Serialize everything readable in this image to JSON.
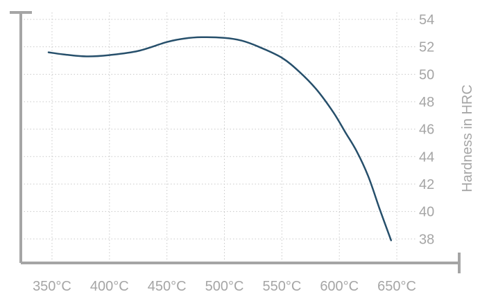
{
  "chart_data": {
    "type": "line",
    "title": "",
    "xlabel": "",
    "ylabel": "Hardness in HRC",
    "xlim": [
      330,
      670
    ],
    "ylim": [
      36.5,
      55
    ],
    "grid": true,
    "x_ticks": [
      350,
      400,
      450,
      500,
      550,
      600,
      650
    ],
    "x_tick_labels": [
      "350°C",
      "400°C",
      "450°C",
      "500°C",
      "550°C",
      "600°C",
      "650°C"
    ],
    "y_ticks": [
      38,
      40,
      42,
      44,
      46,
      48,
      50,
      52,
      54
    ],
    "y_tick_labels": [
      "38",
      "40",
      "42",
      "44",
      "46",
      "48",
      "50",
      "52",
      "54"
    ],
    "series": [
      {
        "color": "#264f6b",
        "points": [
          [
            347,
            51.6
          ],
          [
            360,
            51.45
          ],
          [
            380,
            51.3
          ],
          [
            400,
            51.4
          ],
          [
            425,
            51.7
          ],
          [
            450,
            52.35
          ],
          [
            465,
            52.6
          ],
          [
            480,
            52.7
          ],
          [
            500,
            52.65
          ],
          [
            515,
            52.45
          ],
          [
            530,
            52.0
          ],
          [
            550,
            51.2
          ],
          [
            565,
            50.2
          ],
          [
            580,
            48.9
          ],
          [
            595,
            47.2
          ],
          [
            605,
            45.8
          ],
          [
            615,
            44.4
          ],
          [
            625,
            42.6
          ],
          [
            635,
            40.2
          ],
          [
            645,
            37.9
          ]
        ]
      }
    ],
    "axis_color": "#a5a5a5",
    "grid_color": "#c8c8c8"
  }
}
